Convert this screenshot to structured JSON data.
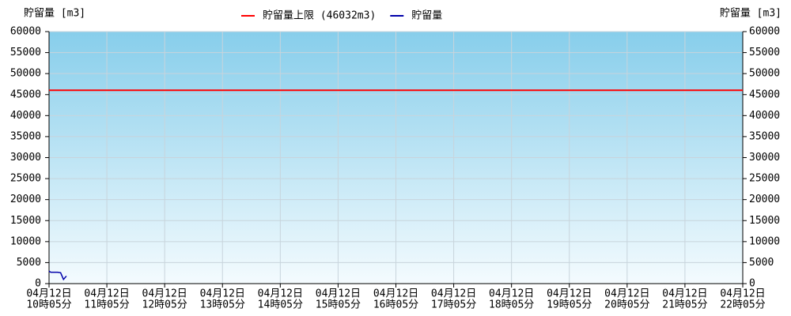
{
  "chart_data": {
    "type": "line",
    "y_axis_label": "貯留量 [m3]",
    "y2_axis_label": "貯留量 [m3]",
    "xlim": [
      605,
      1325
    ],
    "xticks": [
      {
        "value": 605,
        "label": [
          "04月12日",
          "10時05分"
        ]
      },
      {
        "value": 665,
        "label": [
          "04月12日",
          "11時05分"
        ]
      },
      {
        "value": 725,
        "label": [
          "04月12日",
          "12時05分"
        ]
      },
      {
        "value": 785,
        "label": [
          "04月12日",
          "13時05分"
        ]
      },
      {
        "value": 845,
        "label": [
          "04月12日",
          "14時05分"
        ]
      },
      {
        "value": 905,
        "label": [
          "04月12日",
          "15時05分"
        ]
      },
      {
        "value": 965,
        "label": [
          "04月12日",
          "16時05分"
        ]
      },
      {
        "value": 1025,
        "label": [
          "04月12日",
          "17時05分"
        ]
      },
      {
        "value": 1085,
        "label": [
          "04月12日",
          "18時05分"
        ]
      },
      {
        "value": 1145,
        "label": [
          "04月12日",
          "19時05分"
        ]
      },
      {
        "value": 1205,
        "label": [
          "04月12日",
          "20時05分"
        ]
      },
      {
        "value": 1265,
        "label": [
          "04月12日",
          "21時05分"
        ]
      },
      {
        "value": 1325,
        "label": [
          "04月12日",
          "22時05分"
        ]
      }
    ],
    "ylim": [
      0,
      60000
    ],
    "yticks": [
      0,
      5000,
      10000,
      15000,
      20000,
      25000,
      30000,
      35000,
      40000,
      45000,
      50000,
      55000,
      60000
    ],
    "grid": true,
    "series": [
      {
        "name": "貯留量上限 (46032m3)",
        "color": "#ff0000",
        "x": [
          605,
          1325
        ],
        "values": [
          46032,
          46032
        ]
      },
      {
        "name": "貯留量",
        "color": "#0000aa",
        "x": [
          605,
          606,
          607,
          614,
          617,
          620,
          623
        ],
        "values": [
          3000,
          2800,
          2700,
          2700,
          2600,
          1000,
          1800
        ]
      }
    ]
  }
}
